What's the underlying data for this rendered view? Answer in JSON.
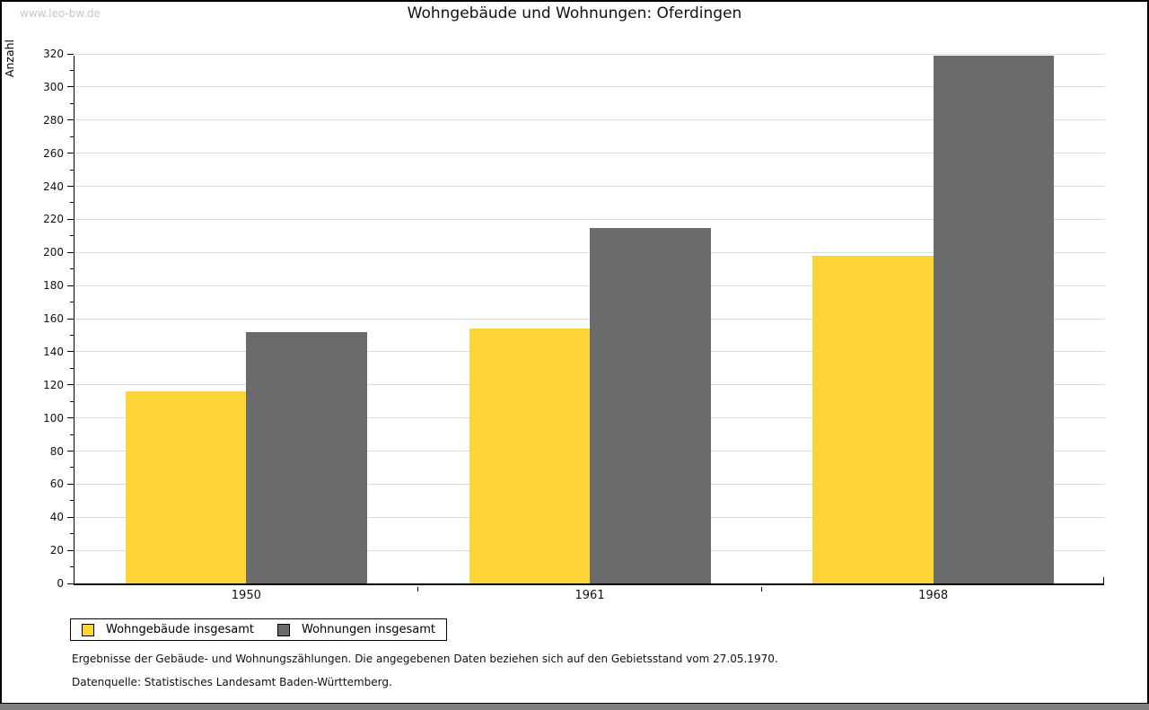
{
  "watermark": "www.leo-bw.de",
  "title": "Wohngebäude und Wohnungen: Oferdingen",
  "chart_data": {
    "type": "bar",
    "title": "Wohngebäude und Wohnungen: Oferdingen",
    "xlabel": "",
    "ylabel": "Anzahl",
    "categories": [
      "1950",
      "1961",
      "1968"
    ],
    "series": [
      {
        "name": "Wohngebäude insgesamt",
        "color": "#FCD435",
        "values": [
          116,
          154,
          198
        ]
      },
      {
        "name": "Wohnungen insgesamt",
        "color": "#6B6B6B",
        "values": [
          152,
          215,
          319
        ]
      }
    ],
    "ylim": [
      0,
      320
    ],
    "ytick_major_step": 20,
    "ytick_minor_step": 10,
    "grid": true,
    "grid_color": "#DCDCDC",
    "axis_color": "#000000",
    "legend_position": "bottom-left"
  },
  "footnotes": [
    "Ergebnisse der Gebäude- und Wohnungszählungen. Die angegebenen Daten beziehen sich auf den Gebietsstand vom 27.05.1970.",
    "Datenquelle: Statistisches Landesamt Baden-Württemberg."
  ]
}
